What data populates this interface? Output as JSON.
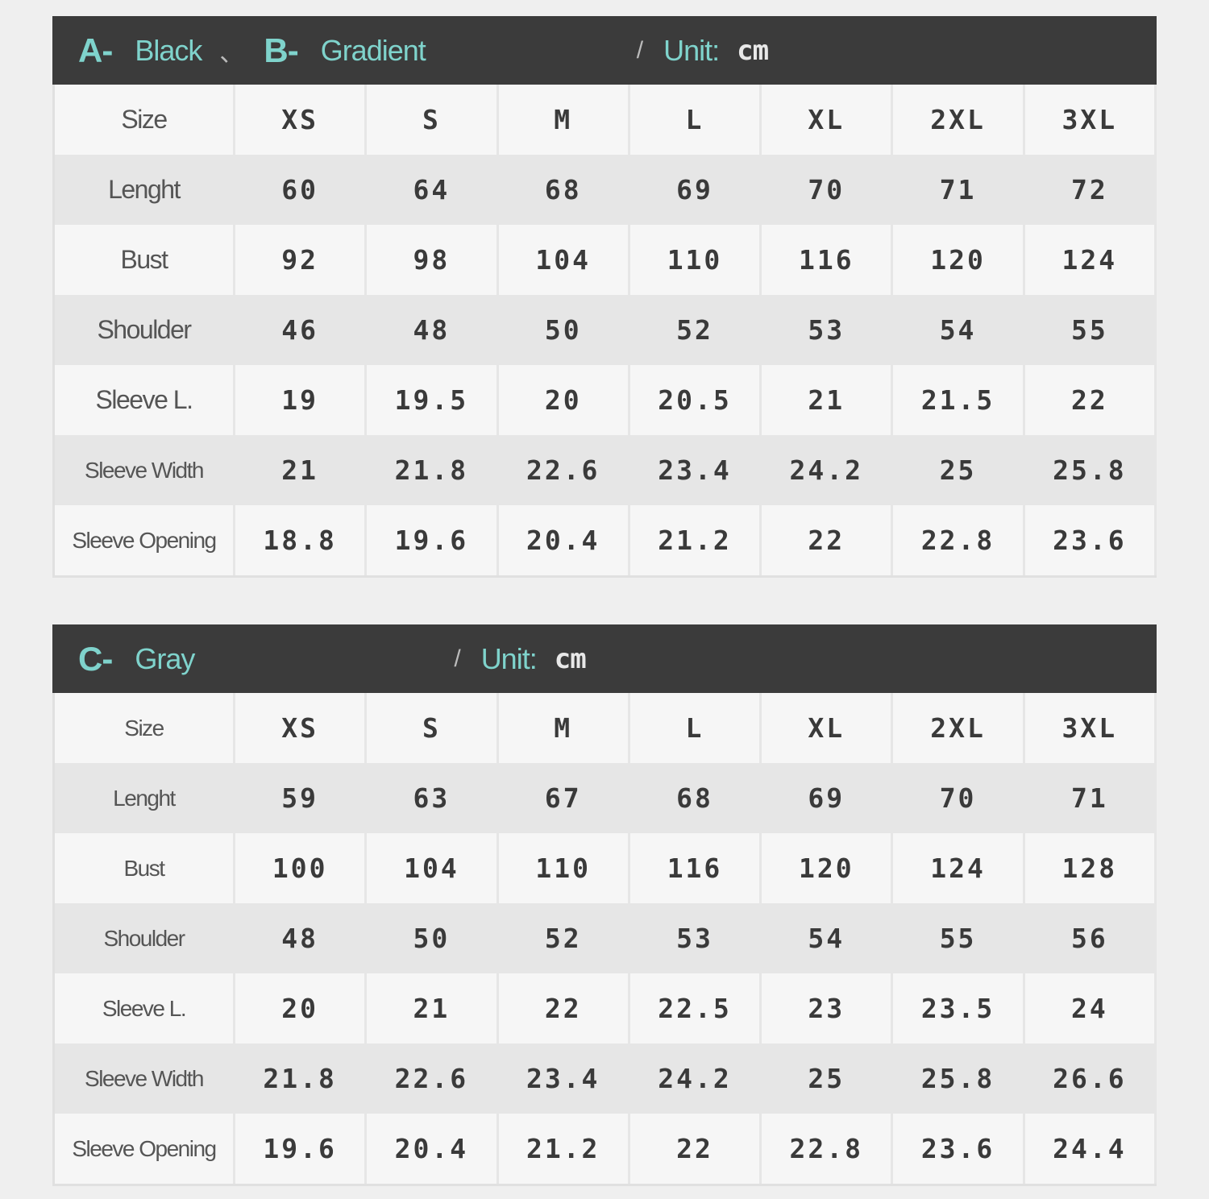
{
  "tables": [
    {
      "header": [
        "A-",
        "Black",
        "、",
        "B-",
        "Gradient",
        "/",
        "Unit:",
        "cm"
      ],
      "rows": [
        [
          "Size",
          "XS",
          "S",
          "M",
          "L",
          "XL",
          "2XL",
          "3XL"
        ],
        [
          "Lenght",
          "60",
          "64",
          "68",
          "69",
          "70",
          "71",
          "72"
        ],
        [
          "Bust",
          "92",
          "98",
          "104",
          "110",
          "116",
          "120",
          "124"
        ],
        [
          "Shoulder",
          "46",
          "48",
          "50",
          "52",
          "53",
          "54",
          "55"
        ],
        [
          "Sleeve L.",
          "19",
          "19.5",
          "20",
          "20.5",
          "21",
          "21.5",
          "22"
        ],
        [
          "Sleeve Width",
          "21",
          "21.8",
          "22.6",
          "23.4",
          "24.2",
          "25",
          "25.8"
        ],
        [
          "Sleeve Opening",
          "18.8",
          "19.6",
          "20.4",
          "21.2",
          "22",
          "22.8",
          "23.6"
        ]
      ]
    },
    {
      "header": [
        "C-",
        "Gray",
        "/",
        "Unit:",
        "cm"
      ],
      "rows": [
        [
          "Size",
          "XS",
          "S",
          "M",
          "L",
          "XL",
          "2XL",
          "3XL"
        ],
        [
          "Lenght",
          "59",
          "63",
          "67",
          "68",
          "69",
          "70",
          "71"
        ],
        [
          "Bust",
          "100",
          "104",
          "110",
          "116",
          "120",
          "124",
          "128"
        ],
        [
          "Shoulder",
          "48",
          "50",
          "52",
          "53",
          "54",
          "55",
          "56"
        ],
        [
          "Sleeve L.",
          "20",
          "21",
          "22",
          "22.5",
          "23",
          "23.5",
          "24"
        ],
        [
          "Sleeve Width",
          "21.8",
          "22.6",
          "23.4",
          "24.2",
          "25",
          "25.8",
          "26.6"
        ],
        [
          "Sleeve Opening",
          "19.6",
          "20.4",
          "21.2",
          "22",
          "22.8",
          "23.6",
          "24.4"
        ]
      ]
    }
  ]
}
